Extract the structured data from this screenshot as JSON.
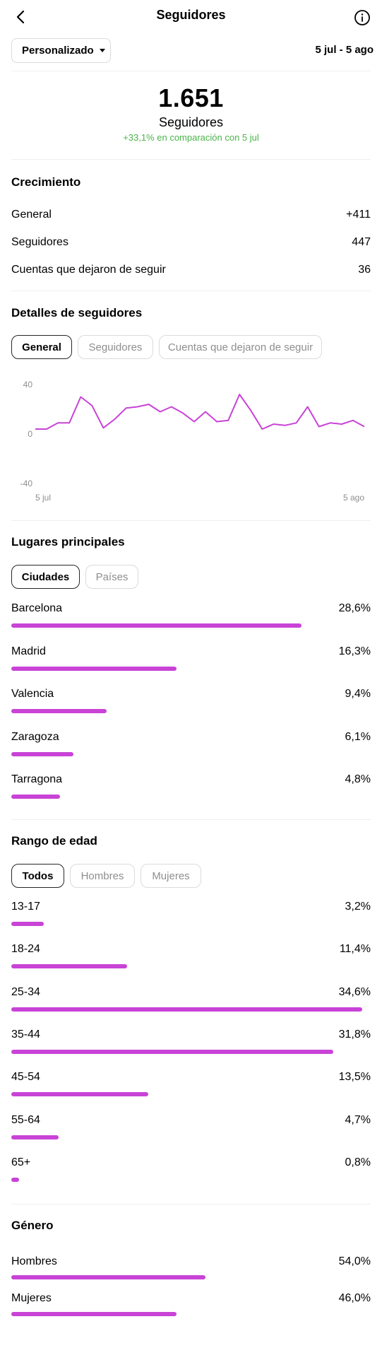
{
  "header": {
    "title": "Seguidores",
    "period_selector": "Personalizado",
    "date_range": "5 jul - 5 ago"
  },
  "summary": {
    "total": "1.651",
    "label": "Seguidores",
    "comparison": "+33,1% en comparación con 5 jul",
    "comparison_color": "#4bb34b"
  },
  "growth": {
    "title": "Crecimiento",
    "rows": [
      {
        "label": "General",
        "value": "+411"
      },
      {
        "label": "Seguidores",
        "value": "447"
      },
      {
        "label": "Cuentas que dejaron de seguir",
        "value": "36"
      }
    ]
  },
  "details": {
    "title": "Detalles de seguidores",
    "tabs": [
      "General",
      "Seguidores",
      "Cuentas que dejaron de seguir"
    ],
    "active_tab": "General"
  },
  "chart_data": {
    "type": "line",
    "title": "",
    "xlabel": "",
    "ylabel": "",
    "y_ticks": [
      "40",
      "0",
      "-40"
    ],
    "x_ticks": [
      "5 jul",
      "5 ago"
    ],
    "ylim": [
      -40,
      40
    ],
    "grid": false,
    "series": [
      {
        "color": "#c843d6",
        "values": [
          4,
          4,
          9,
          9,
          30,
          23,
          5,
          12,
          21,
          22,
          24,
          18,
          22,
          17,
          10,
          18,
          10,
          11,
          32,
          19,
          4,
          8,
          7,
          9,
          22,
          6,
          9,
          8,
          11,
          6
        ]
      }
    ]
  },
  "places": {
    "title": "Lugares principales",
    "tabs": [
      "Ciudades",
      "Países"
    ],
    "active_tab": "Ciudades",
    "rows": [
      {
        "label": "Barcelona",
        "value": "28,6%",
        "fraction": 0.286
      },
      {
        "label": "Madrid",
        "value": "16,3%",
        "fraction": 0.163
      },
      {
        "label": "Valencia",
        "value": "9,4%",
        "fraction": 0.094
      },
      {
        "label": "Zaragoza",
        "value": "6,1%",
        "fraction": 0.061
      },
      {
        "label": "Tarragona",
        "value": "4,8%",
        "fraction": 0.048
      }
    ]
  },
  "age": {
    "title": "Rango de edad",
    "tabs": [
      "Todos",
      "Hombres",
      "Mujeres"
    ],
    "active_tab": "Todos",
    "rows": [
      {
        "label": "13-17",
        "value": "3,2%",
        "fraction": 0.032
      },
      {
        "label": "18-24",
        "value": "11,4%",
        "fraction": 0.114
      },
      {
        "label": "25-34",
        "value": "34,6%",
        "fraction": 0.346
      },
      {
        "label": "35-44",
        "value": "31,8%",
        "fraction": 0.318
      },
      {
        "label": "45-54",
        "value": "13,5%",
        "fraction": 0.135
      },
      {
        "label": "55-64",
        "value": "4,7%",
        "fraction": 0.047
      },
      {
        "label": "65+",
        "value": "0,8%",
        "fraction": 0.008
      }
    ]
  },
  "gender": {
    "title": "Género",
    "rows": [
      {
        "label": "Hombres",
        "value": "54,0%",
        "fraction": 0.54
      },
      {
        "label": "Mujeres",
        "value": "46,0%",
        "fraction": 0.46
      }
    ]
  },
  "colors": {
    "accent_bar": "#c843d6",
    "positive": "#4bb34b"
  }
}
